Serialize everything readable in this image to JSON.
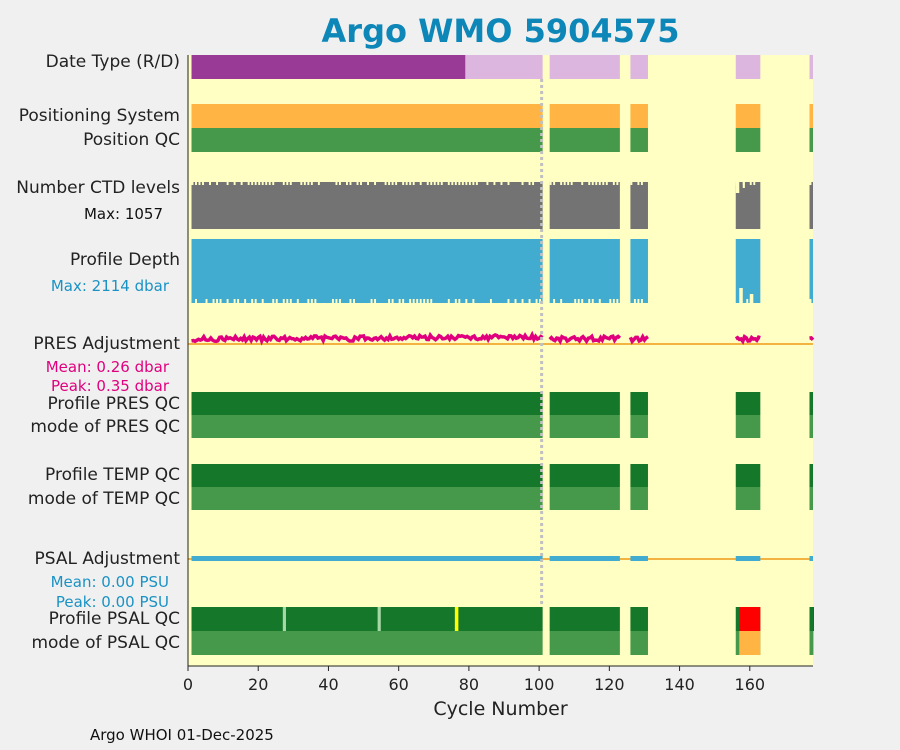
{
  "chart_data": {
    "type": "heatmap",
    "title": "Argo WMO 5904575",
    "xlabel": "Cycle Number",
    "xlim": [
      0,
      178
    ],
    "xticks": [
      0,
      20,
      40,
      60,
      80,
      100,
      120,
      140,
      160
    ],
    "footer": "Argo WHOI 01-Dec-2025",
    "reference_line_cycle": 101,
    "colors": {
      "background": "#ffffc4",
      "delayed": "#9a3a97",
      "realtime": "#dcb6de",
      "positioning": "#ffb443",
      "qc_good": "#15772a",
      "qc_mode_good": "#46994a",
      "ctd": "#737373",
      "depth": "#42abd0",
      "pres_adj": "#e0007e",
      "psal_adj": "#42abd0",
      "ref_line": "#f2b340",
      "qc_bad": "#ff0000",
      "qc_mode_bad": "#ffb443",
      "qc_light": "#a8d8a8",
      "qc_yellow": "#ffff00"
    },
    "data_ranges": [
      [
        1,
        101
      ],
      [
        103,
        123
      ],
      [
        126,
        131
      ],
      [
        156,
        163
      ],
      [
        177,
        178
      ]
    ],
    "rows": [
      {
        "label": "Date Type (R/D)",
        "delayed_until_cycle": 79
      },
      {
        "label": "Positioning System"
      },
      {
        "label": "Position QC"
      },
      {
        "label": "Number CTD levels",
        "sublabel": "Max: 1057"
      },
      {
        "label": "Profile Depth",
        "sublabel": "Max: 2114 dbar"
      },
      {
        "label": "PRES Adjustment",
        "sublabels": [
          "Mean: 0.26 dbar",
          "Peak: 0.35 dbar"
        ]
      },
      {
        "label": "Profile PRES QC"
      },
      {
        "label": "mode of PRES QC"
      },
      {
        "label": "Profile TEMP QC"
      },
      {
        "label": "mode of TEMP QC"
      },
      {
        "label": "PSAL Adjustment",
        "sublabels": [
          "Mean: 0.00 PSU",
          "Peak: 0.00 PSU"
        ]
      },
      {
        "label": "Profile PSAL QC",
        "flag_light_cycles": [
          27,
          54
        ],
        "flag_yellow_cycles": [
          76
        ],
        "flag_bad_ranges": [
          [
            156,
            163
          ],
          [
            177,
            178
          ]
        ]
      },
      {
        "label": "mode of PSAL QC",
        "flag_bad_ranges": [
          [
            156,
            163
          ],
          [
            177,
            178
          ]
        ]
      }
    ]
  }
}
